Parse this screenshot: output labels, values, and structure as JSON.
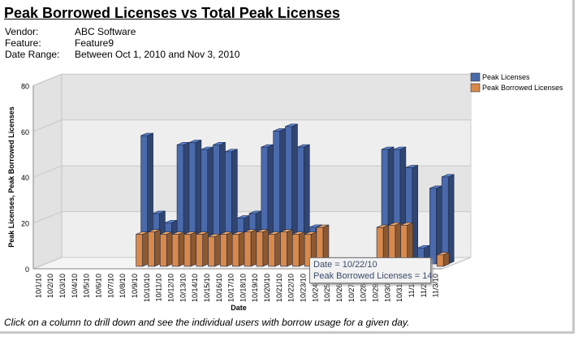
{
  "header": {
    "title": "Peak Borrowed Licenses vs Total Peak Licenses",
    "vendor_label": "Vendor:",
    "vendor_value": "ABC Software",
    "feature_label": "Feature:",
    "feature_value": "Feature9",
    "range_label": "Date Range:",
    "range_value": "Between Oct 1, 2010 and Nov 3, 2010"
  },
  "footer_text": "Click on a column to drill down and see the individual users with borrow usage for a given day.",
  "tooltip": {
    "line1": "Date = 10/22/10",
    "line2": "Peak Borrowed Licenses = 14"
  },
  "chart_data": {
    "type": "bar",
    "title": "",
    "xlabel": "Date",
    "ylabel": "Peak Licenses, Peak Borrowed Licenses",
    "ylim": [
      0,
      80
    ],
    "yticks": [
      0,
      20,
      40,
      60,
      80
    ],
    "grid": true,
    "three_d": true,
    "legend_position": "top-right",
    "categories": [
      "10/1/10",
      "10/2/10",
      "10/3/10",
      "10/4/10",
      "10/5/10",
      "10/6/10",
      "10/7/10",
      "10/8/10",
      "10/9/10",
      "10/10/10",
      "10/11/10",
      "10/12/10",
      "10/13/10",
      "10/14/10",
      "10/15/10",
      "10/16/10",
      "10/17/10",
      "10/18/10",
      "10/19/10",
      "10/20/10",
      "10/21/10",
      "10/22/10",
      "10/23/10",
      "10/24/10",
      "10/25/10",
      "10/26/10",
      "10/27/10",
      "10/28/10",
      "10/29/10",
      "10/30/10",
      "10/31/10",
      "11/1/10",
      "11/2/10",
      "11/3/10"
    ],
    "series": [
      {
        "name": "Peak Licenses",
        "color": "#4a6aac",
        "values": [
          0,
          0,
          0,
          0,
          0,
          0,
          0,
          0,
          56,
          22,
          18,
          52,
          53,
          50,
          52,
          49,
          20,
          22,
          51,
          58,
          60,
          51,
          16,
          0,
          0,
          0,
          0,
          0,
          50,
          50,
          42,
          7,
          33,
          38
        ]
      },
      {
        "name": "Peak Borrowed Licenses",
        "color": "#d9894a",
        "values": [
          0,
          0,
          0,
          0,
          0,
          0,
          0,
          0,
          14,
          15,
          14,
          14,
          14,
          14,
          13,
          14,
          14,
          15,
          15,
          14,
          15,
          14,
          14,
          17,
          0,
          0,
          0,
          0,
          17,
          18,
          18,
          0,
          0,
          5
        ]
      }
    ]
  }
}
